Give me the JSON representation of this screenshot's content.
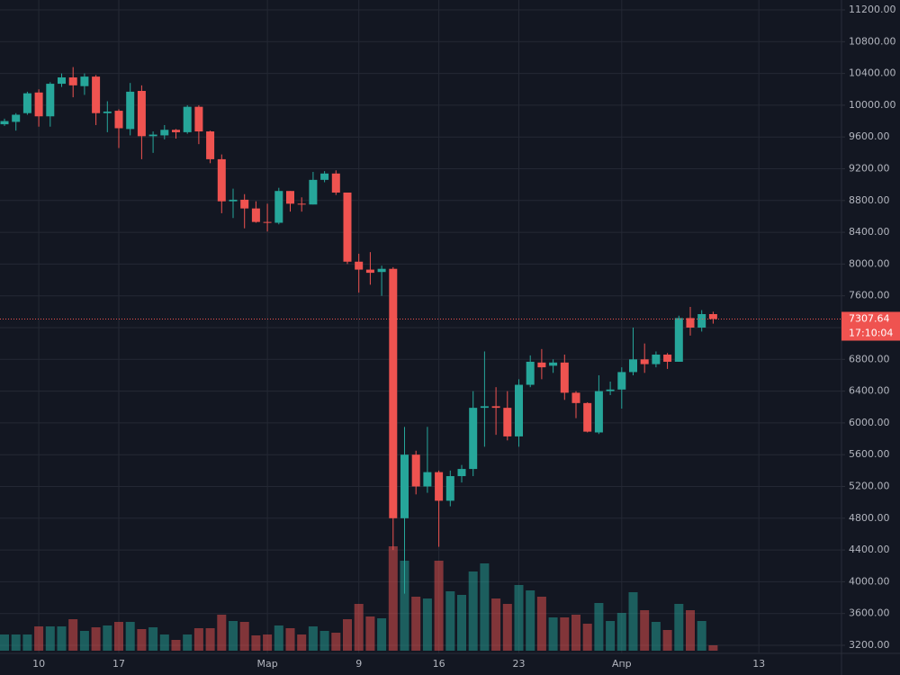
{
  "chart_data": {
    "type": "candlestick",
    "categories": [
      null,
      null,
      null,
      "10",
      null,
      null,
      null,
      null,
      null,
      null,
      "17",
      null,
      null,
      null,
      null,
      null,
      null,
      null,
      null,
      null,
      null,
      null,
      null,
      "Мар",
      null,
      null,
      null,
      null,
      null,
      null,
      null,
      "9",
      null,
      null,
      null,
      null,
      null,
      null,
      "16",
      null,
      null,
      null,
      null,
      null,
      null,
      "23",
      null,
      null,
      null,
      null,
      null,
      null,
      null,
      null,
      "Апр",
      null,
      null,
      null,
      null,
      null,
      null,
      null,
      null,
      null,
      null,
      null,
      "13"
    ],
    "open": [
      9760,
      9790,
      9900,
      10160,
      9860,
      10270,
      10350,
      10240,
      10360,
      9900,
      9930,
      9700,
      10180,
      9610,
      9620,
      9690,
      9660,
      9980,
      9670,
      9320,
      8790,
      8810,
      8700,
      8530,
      8520,
      8920,
      8760,
      8750,
      9060,
      9140,
      8900,
      8030,
      7930,
      7900,
      7940,
      4800,
      5600,
      5200,
      5380,
      5020,
      5330,
      5420,
      6190,
      6210,
      6190,
      5830,
      6480,
      6760,
      6720,
      6760,
      6380,
      6250,
      5880,
      6400,
      6420,
      6640,
      6800,
      6740,
      6860,
      6770,
      7320,
      7200,
      7370,
      null,
      null,
      null,
      null
    ],
    "high": [
      9830,
      9900,
      10170,
      10200,
      10290,
      10400,
      10480,
      10400,
      10380,
      10050,
      9950,
      10280,
      10250,
      9670,
      9750,
      9700,
      10000,
      10000,
      9680,
      9380,
      8950,
      8880,
      8790,
      8760,
      8960,
      8920,
      8840,
      9160,
      9170,
      9180,
      8900,
      8130,
      8150,
      7980,
      7960,
      5950,
      5650,
      5950,
      5400,
      5400,
      5470,
      6400,
      6900,
      6450,
      6400,
      6550,
      6850,
      6930,
      6800,
      6860,
      6400,
      6260,
      6600,
      6520,
      6700,
      7200,
      7000,
      6900,
      6880,
      7350,
      7460,
      7420,
      7400,
      null,
      null,
      null,
      null
    ],
    "low": [
      9740,
      9680,
      9880,
      9730,
      9730,
      10230,
      10100,
      10130,
      9750,
      9660,
      9460,
      9620,
      9320,
      9400,
      9570,
      9580,
      9640,
      9510,
      9270,
      8640,
      8580,
      8450,
      8520,
      8410,
      8500,
      8660,
      8660,
      8750,
      9030,
      8870,
      8000,
      7640,
      7740,
      7600,
      4400,
      3850,
      5100,
      5120,
      4440,
      4950,
      5250,
      5330,
      5700,
      5850,
      5780,
      5700,
      6450,
      6550,
      6630,
      6290,
      6060,
      5880,
      5860,
      6350,
      6180,
      6600,
      6630,
      6700,
      6680,
      6770,
      7100,
      7150,
      7250,
      null,
      null,
      null,
      null
    ],
    "close": [
      9800,
      9880,
      10150,
      9860,
      10270,
      10350,
      10250,
      10360,
      9900,
      9920,
      9710,
      10170,
      9610,
      9630,
      9690,
      9660,
      9980,
      9670,
      9320,
      8790,
      8810,
      8700,
      8530,
      8520,
      8920,
      8760,
      8750,
      9060,
      9140,
      8900,
      8030,
      7930,
      7890,
      7940,
      4800,
      5600,
      5200,
      5380,
      5020,
      5330,
      5420,
      6190,
      6210,
      6190,
      5830,
      6480,
      6770,
      6700,
      6760,
      6380,
      6250,
      5890,
      6400,
      6420,
      6640,
      6800,
      6740,
      6860,
      6770,
      7320,
      7200,
      7370,
      7307.64,
      null,
      null,
      null,
      null
    ],
    "volume": [
      18,
      18,
      18,
      27,
      27,
      27,
      35,
      22,
      26,
      28,
      32,
      32,
      24,
      26,
      18,
      12,
      18,
      25,
      25,
      40,
      33,
      32,
      17,
      18,
      28,
      25,
      18,
      27,
      22,
      20,
      35,
      52,
      38,
      36,
      116,
      100,
      60,
      58,
      100,
      66,
      62,
      88,
      97,
      58,
      52,
      73,
      67,
      60,
      37,
      37,
      40,
      30,
      53,
      33,
      42,
      65,
      45,
      32,
      23,
      52,
      45,
      33,
      6,
      null,
      null,
      null,
      null
    ],
    "up_color": "#26a69a",
    "down_color": "#ef5350",
    "last_price": 7307.64,
    "countdown": "17:10:04",
    "ylim": [
      3200,
      11200
    ],
    "yticks": [
      {
        "value": 3200,
        "label": "3200.00"
      },
      {
        "value": 3600,
        "label": "3600.00"
      },
      {
        "value": 4000,
        "label": "4000.00"
      },
      {
        "value": 4400,
        "label": "4400.00"
      },
      {
        "value": 4800,
        "label": "4800.00"
      },
      {
        "value": 5200,
        "label": "5200.00"
      },
      {
        "value": 5600,
        "label": "5600.00"
      },
      {
        "value": 6000,
        "label": "6000.00"
      },
      {
        "value": 6400,
        "label": "6400.00"
      },
      {
        "value": 6800,
        "label": "6800.00"
      },
      {
        "value": 7200,
        "label": "7200.00"
      },
      {
        "value": 7600,
        "label": "7600.00"
      },
      {
        "value": 8000,
        "label": "8000.00"
      },
      {
        "value": 8400,
        "label": "8400.00"
      },
      {
        "value": 8800,
        "label": "8800.00"
      },
      {
        "value": 9200,
        "label": "9200.00"
      },
      {
        "value": 9600,
        "label": "9600.00"
      },
      {
        "value": 10000,
        "label": "10000.00"
      },
      {
        "value": 10400,
        "label": "10400.00"
      },
      {
        "value": 10800,
        "label": "10800.00"
      },
      {
        "value": 11200,
        "label": "11200.00"
      }
    ],
    "grid": true
  }
}
